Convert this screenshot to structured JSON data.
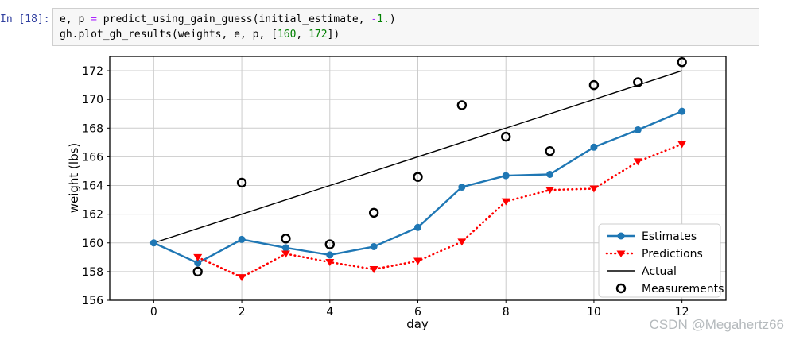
{
  "notebook_cell": {
    "prompt": "In [18]:",
    "code_lines": [
      [
        {
          "text": "e, p ",
          "type": "plain"
        },
        {
          "text": "=",
          "type": "op"
        },
        {
          "text": " predict_using_gain_guess(initial_estimate, ",
          "type": "plain"
        },
        {
          "text": "-",
          "type": "op"
        },
        {
          "text": "1.",
          "type": "num"
        },
        {
          "text": ")",
          "type": "plain"
        }
      ],
      [
        {
          "text": "gh.plot_gh_results(weights, e, p, [",
          "type": "plain"
        },
        {
          "text": "160",
          "type": "num"
        },
        {
          "text": ", ",
          "type": "plain"
        },
        {
          "text": "172",
          "type": "num"
        },
        {
          "text": "])",
          "type": "plain"
        }
      ]
    ]
  },
  "chart_data": {
    "type": "line",
    "title": "",
    "xlabel": "day",
    "ylabel": "weight (lbs)",
    "xlim": [
      -1,
      13
    ],
    "ylim": [
      156,
      173
    ],
    "x_ticks": [
      0,
      2,
      4,
      6,
      8,
      10,
      12
    ],
    "y_ticks": [
      156,
      158,
      160,
      162,
      164,
      166,
      168,
      170,
      172
    ],
    "grid": true,
    "grid_color": "#cccccc",
    "legend_position": "lower right",
    "series": [
      {
        "name": "Estimates",
        "type": "line",
        "color": "#1f77b4",
        "linestyle": "solid",
        "marker": "circle",
        "x": [
          0,
          1,
          2,
          3,
          4,
          5,
          6,
          7,
          8,
          9,
          10,
          11,
          12
        ],
        "y": [
          160.0,
          158.6,
          160.24,
          159.66,
          159.16,
          159.74,
          161.08,
          163.89,
          164.69,
          164.78,
          166.67,
          167.88,
          169.17
        ]
      },
      {
        "name": "Predictions",
        "type": "line",
        "color": "#ff0000",
        "linestyle": "dotted",
        "marker": "triangle-down",
        "x": [
          1,
          2,
          3,
          4,
          5,
          6,
          7,
          8,
          9,
          10,
          11,
          12
        ],
        "y": [
          159.0,
          157.6,
          159.24,
          158.66,
          158.16,
          158.74,
          160.08,
          162.89,
          163.69,
          163.78,
          165.67,
          166.88
        ]
      },
      {
        "name": "Actual",
        "type": "line",
        "color": "#000000",
        "linestyle": "solid",
        "marker": "none",
        "x": [
          0,
          12
        ],
        "y": [
          160,
          172
        ]
      },
      {
        "name": "Measurements",
        "type": "scatter",
        "color": "#000000",
        "marker": "open-circle",
        "x": [
          1,
          2,
          3,
          4,
          5,
          6,
          7,
          8,
          9,
          10,
          11,
          12
        ],
        "y": [
          158.0,
          164.2,
          160.3,
          159.9,
          162.1,
          164.6,
          169.6,
          167.4,
          166.4,
          171.0,
          171.2,
          172.6
        ]
      }
    ]
  },
  "watermark": {
    "text": "CSDN @Megahertz66",
    "color": "#b5babd"
  }
}
